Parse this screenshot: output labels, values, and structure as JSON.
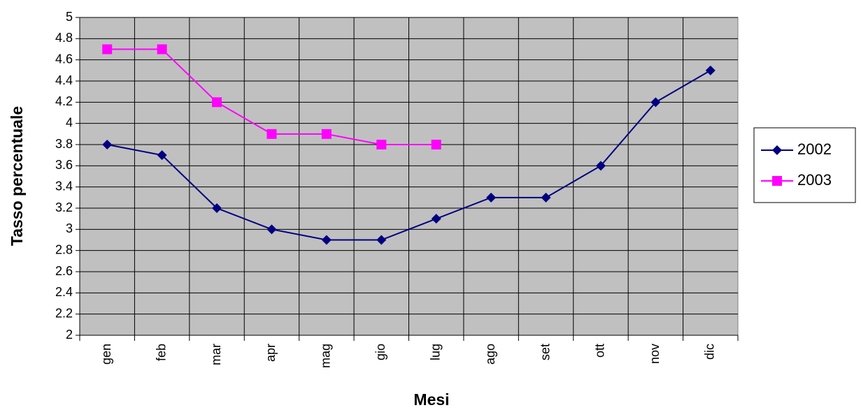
{
  "chart_data": {
    "type": "line",
    "x_label": "Mesi",
    "y_label": "Tasso percentuale",
    "categories": [
      "gen",
      "feb",
      "mar",
      "apr",
      "mag",
      "gio",
      "lug",
      "ago",
      "set",
      "ott",
      "nov",
      "dic"
    ],
    "series": [
      {
        "name": "2002",
        "color": "#000080",
        "marker": "diamond",
        "values": [
          3.8,
          3.7,
          3.2,
          3.0,
          2.9,
          2.9,
          3.1,
          3.3,
          3.3,
          3.6,
          4.2,
          4.5
        ]
      },
      {
        "name": "2003",
        "color": "#ff00ff",
        "marker": "square",
        "values": [
          4.7,
          4.7,
          4.2,
          3.9,
          3.9,
          3.8,
          3.8,
          null,
          null,
          null,
          null,
          null
        ]
      }
    ],
    "ylim": [
      2,
      5
    ],
    "yticks": [
      2,
      2.2,
      2.4,
      2.6,
      2.8,
      3,
      3.2,
      3.4,
      3.6,
      3.8,
      4,
      4.2,
      4.4,
      4.6,
      4.8,
      5
    ],
    "grid": true,
    "plot_background": "#c0c0c0",
    "legend": "right"
  }
}
